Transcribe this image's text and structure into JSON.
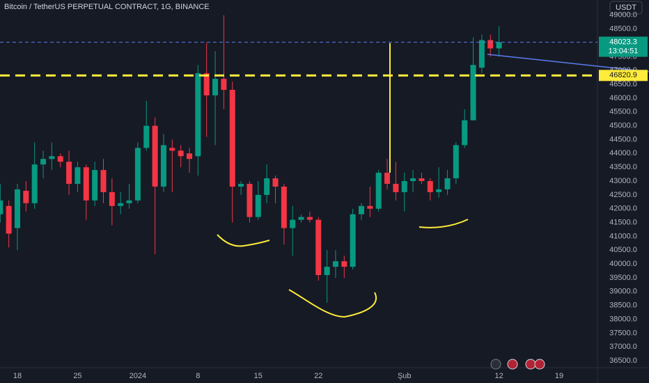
{
  "chart_data": {
    "type": "candlestick",
    "title": "Bitcoin / TetherUS PERPETUAL CONTRACT, 1G, BINANCE",
    "currency_button": "USDT",
    "categories": [
      null,
      null,
      "18",
      null,
      null,
      null,
      null,
      null,
      null,
      "25",
      null,
      null,
      null,
      null,
      null,
      null,
      "2024",
      null,
      null,
      null,
      null,
      null,
      null,
      "8",
      null,
      null,
      null,
      null,
      null,
      null,
      "15",
      null,
      null,
      null,
      null,
      null,
      null,
      "22",
      null,
      null,
      null,
      null,
      null,
      null,
      null,
      null,
      null,
      "Şub",
      null,
      null,
      null,
      null,
      null,
      null,
      null,
      null,
      null,
      null,
      "12",
      null,
      null,
      null,
      null,
      null,
      null,
      "19",
      null,
      null,
      null,
      null
    ],
    "up_color": "#089981",
    "down_color": "#f23645",
    "open": [
      41800,
      42100,
      41300,
      42650,
      42200,
      43600,
      43800,
      43900,
      43700,
      42900,
      43500,
      42300,
      43400,
      42600,
      42100,
      42200,
      42300,
      44200,
      45000,
      42800,
      44200,
      44100,
      44000,
      43900,
      46900,
      46100,
      46700,
      46300,
      42800,
      42900,
      41700,
      42500,
      43100,
      42800,
      41300,
      41600,
      41700,
      41600,
      39600,
      39900,
      40100,
      39900,
      41800,
      42100,
      42000,
      43300,
      42900,
      42600,
      43000,
      43100,
      43000,
      42600,
      42700,
      43100,
      44300,
      45200,
      47100,
      48100,
      47800,
      null,
      null,
      null,
      null,
      null,
      null,
      null,
      null,
      null,
      null,
      null
    ],
    "high": [
      42900,
      42300,
      42900,
      43000,
      44400,
      44100,
      44400,
      44000,
      44100,
      43700,
      43600,
      43700,
      43800,
      43100,
      42600,
      42900,
      44400,
      45900,
      45300,
      44700,
      44500,
      44300,
      44200,
      47200,
      48000,
      47700,
      49000,
      46600,
      43000,
      43000,
      43000,
      43600,
      43200,
      42900,
      42100,
      41800,
      41900,
      41700,
      40500,
      40500,
      40300,
      42000,
      42200,
      42800,
      43400,
      43800,
      43700,
      43300,
      43400,
      43300,
      43100,
      43500,
      43400,
      44400,
      45600,
      48200,
      48300,
      48300,
      48600,
      null,
      null,
      null,
      null,
      null,
      null,
      null,
      null,
      null,
      null,
      null
    ],
    "low": [
      41500,
      40600,
      40500,
      41900,
      42000,
      43100,
      43400,
      43500,
      42500,
      42600,
      41600,
      42100,
      42200,
      41400,
      41800,
      42000,
      42200,
      44100,
      40350,
      42600,
      42600,
      43500,
      43300,
      43200,
      44600,
      44300,
      45600,
      41500,
      42500,
      41500,
      41600,
      42200,
      42200,
      40700,
      40300,
      41500,
      41500,
      39400,
      38600,
      39500,
      39500,
      39800,
      41600,
      41700,
      41900,
      42700,
      42300,
      41900,
      42600,
      42900,
      42300,
      42400,
      42500,
      42900,
      44200,
      45200,
      46900,
      47500,
      47500,
      null,
      null,
      null,
      null,
      null,
      null,
      null,
      null,
      null,
      null,
      null
    ],
    "close": [
      42300,
      41100,
      42700,
      42200,
      43600,
      43800,
      43900,
      43700,
      42900,
      43500,
      42300,
      43400,
      42600,
      42100,
      42200,
      42300,
      44200,
      45000,
      42800,
      44300,
      44100,
      43900,
      43800,
      46900,
      46100,
      46700,
      46300,
      42800,
      42900,
      41700,
      42500,
      43100,
      42800,
      41300,
      41600,
      41700,
      41600,
      39600,
      39900,
      40100,
      39900,
      41800,
      42100,
      42000,
      43300,
      42900,
      42600,
      43000,
      43100,
      43000,
      42600,
      42700,
      43100,
      44300,
      45200,
      47200,
      48100,
      47800,
      48023.3,
      null,
      null,
      null,
      null,
      null,
      null,
      null,
      null,
      null,
      null,
      null
    ],
    "ylim": [
      36250,
      49550
    ],
    "yticks": [
      {
        "value": 36500,
        "label": "36500.0"
      },
      {
        "value": 37000,
        "label": "37000.0"
      },
      {
        "value": 37500,
        "label": "37500.0"
      },
      {
        "value": 38000,
        "label": "38000.0"
      },
      {
        "value": 38500,
        "label": "38500.0"
      },
      {
        "value": 39000,
        "label": "39000.0"
      },
      {
        "value": 39500,
        "label": "39500.0"
      },
      {
        "value": 40000,
        "label": "40000.0"
      },
      {
        "value": 40500,
        "label": "40500.0"
      },
      {
        "value": 41000,
        "label": "41000.0"
      },
      {
        "value": 41500,
        "label": "41500.0"
      },
      {
        "value": 42000,
        "label": "42000.0"
      },
      {
        "value": 42500,
        "label": "42500.0"
      },
      {
        "value": 43000,
        "label": "43000.0"
      },
      {
        "value": 43500,
        "label": "43500.0"
      },
      {
        "value": 44000,
        "label": "44000.0"
      },
      {
        "value": 44500,
        "label": "44500.0"
      },
      {
        "value": 45000,
        "label": "45000.0"
      },
      {
        "value": 45500,
        "label": "45500.0"
      },
      {
        "value": 46000,
        "label": "46000.0"
      },
      {
        "value": 46500,
        "label": "46500.0"
      },
      {
        "value": 47000,
        "label": "47000.0"
      },
      {
        "value": 47500,
        "label": "47500.0"
      },
      {
        "value": 48000,
        "label": "48000.0"
      },
      {
        "value": 48500,
        "label": "48500.0"
      },
      {
        "value": 49000,
        "label": "49000.0"
      }
    ],
    "grid": false,
    "horizontal_line": {
      "value": 46820.9,
      "label": "46820.9",
      "color": "#ffeb3b"
    },
    "price_line": {
      "value": 48023.3,
      "label": "48023.3",
      "countdown": "13:04:51",
      "color": "#089981",
      "line_color": "#5b7cf0"
    }
  }
}
